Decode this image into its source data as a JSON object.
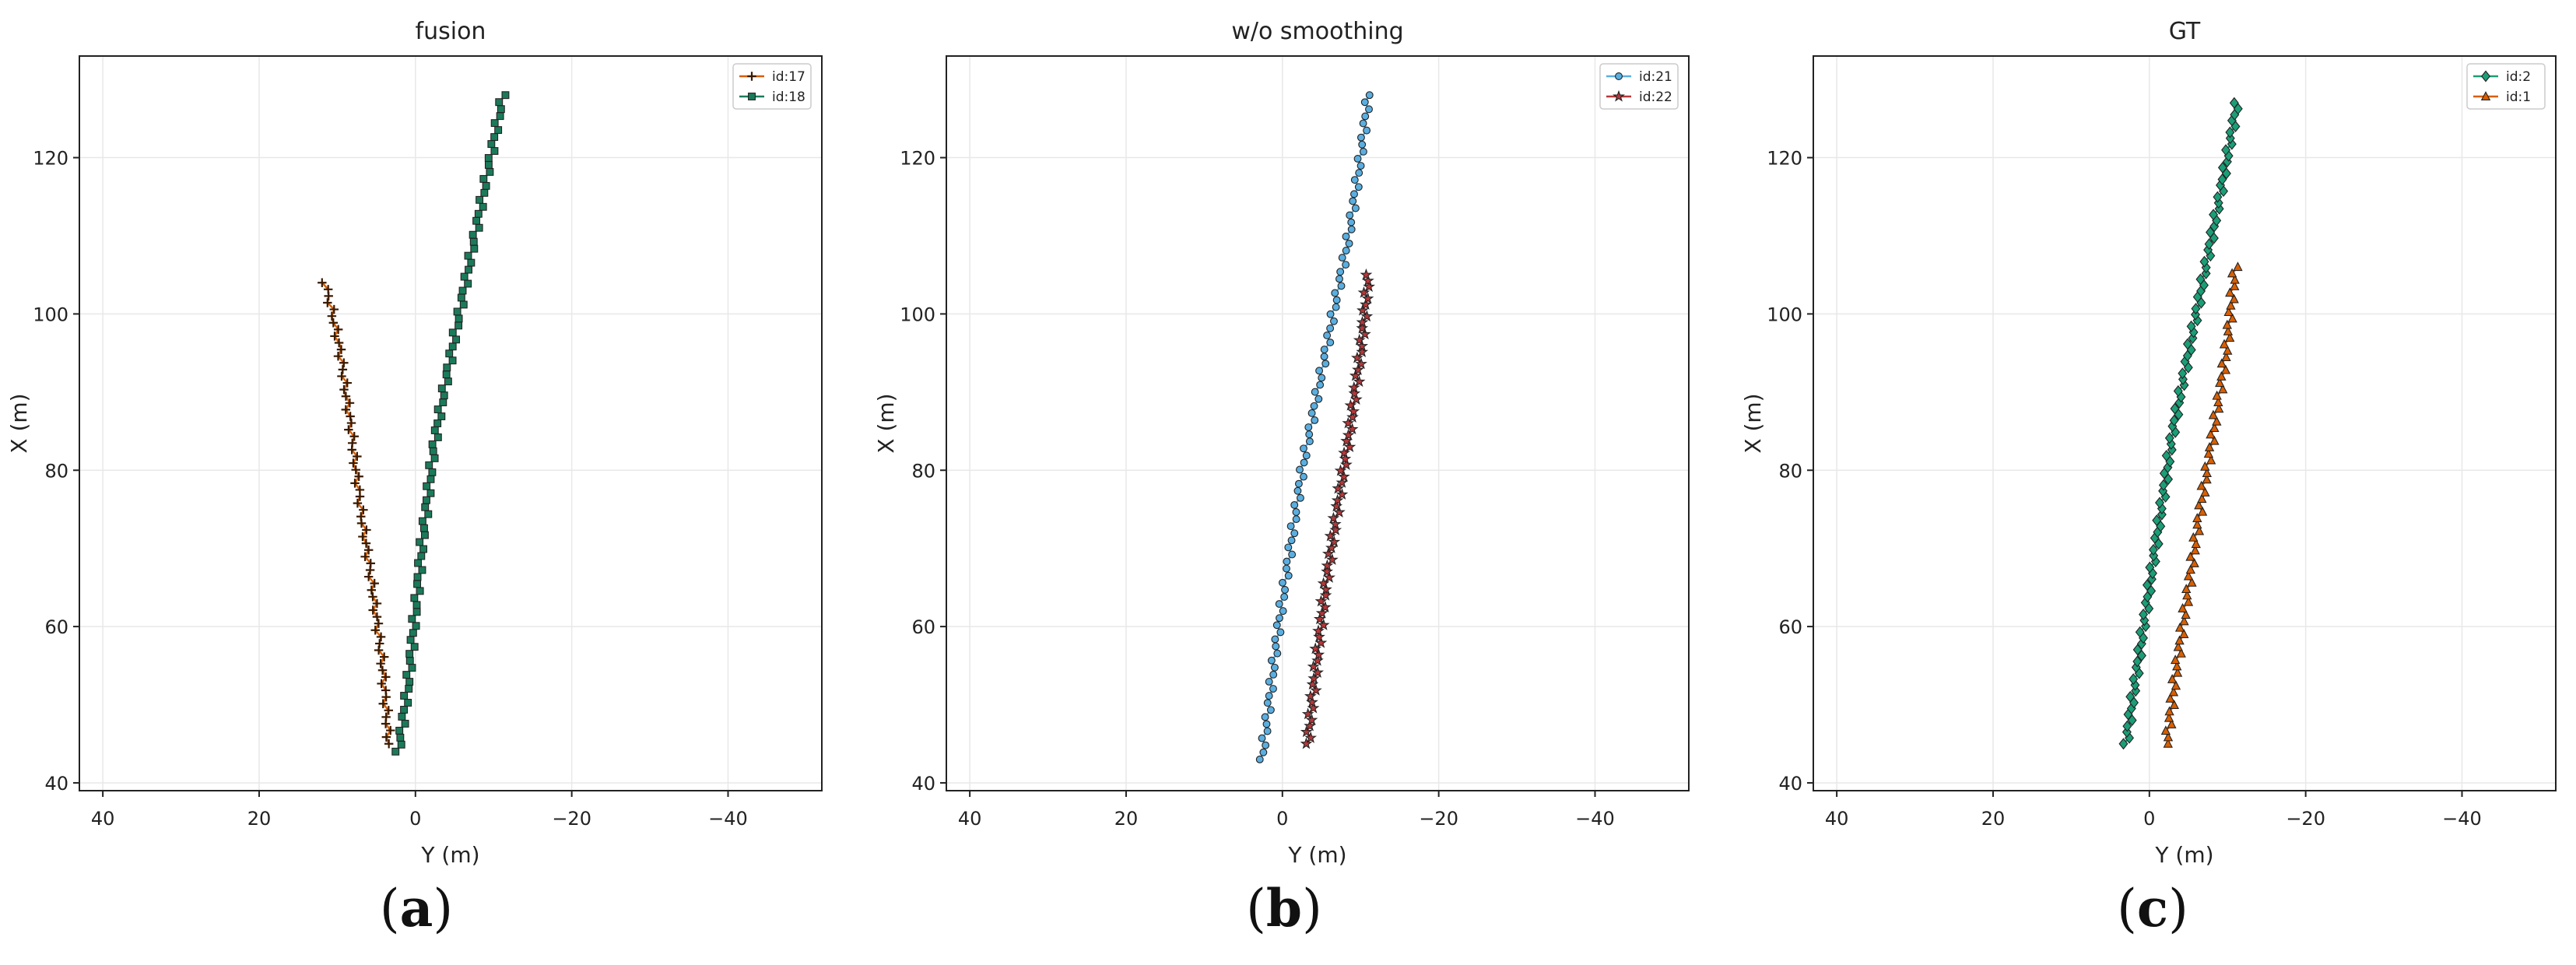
{
  "panels": [
    {
      "caption_open": "(",
      "caption_letter": "a",
      "caption_close": ")"
    },
    {
      "caption_open": "(",
      "caption_letter": "b",
      "caption_close": ")"
    },
    {
      "caption_open": "(",
      "caption_letter": "c",
      "caption_close": ")"
    }
  ],
  "chart_data": [
    {
      "type": "line",
      "title": "fusion",
      "xlabel": "Y (m)",
      "ylabel": "X (m)",
      "xlim": [
        43,
        -52
      ],
      "ylim": [
        39,
        133
      ],
      "x_inverted": true,
      "xticks": [
        40,
        20,
        0,
        -20,
        -40
      ],
      "xtick_labels": [
        "40",
        "20",
        "0",
        "−20",
        "−40"
      ],
      "yticks": [
        40,
        60,
        80,
        100,
        120
      ],
      "ytick_labels": [
        "40",
        "60",
        "80",
        "100",
        "120"
      ],
      "grid": true,
      "legend_position": "top-right",
      "series": [
        {
          "name": "id:17",
          "color": "#d95f02",
          "marker": "plus",
          "samples": 70,
          "x": [
            3.4,
            4.2,
            5.5,
            7.0,
            8.2,
            9.6,
            10.6,
            11.6
          ],
          "y": [
            45,
            55,
            65,
            75,
            85,
            95,
            100,
            104
          ]
        },
        {
          "name": "id:18",
          "color": "#1b7a5a",
          "marker": "square",
          "samples": 95,
          "x": [
            2.2,
            1.0,
            0.0,
            -1.0,
            -2.5,
            -4.0,
            -6.0,
            -8.0,
            -10.0,
            -11.2
          ],
          "y": [
            44,
            52,
            62,
            72,
            84,
            92,
            102,
            112,
            122,
            128
          ]
        }
      ]
    },
    {
      "type": "line",
      "title": "w/o smoothing",
      "xlabel": "Y (m)",
      "ylabel": "X (m)",
      "xlim": [
        43,
        -52
      ],
      "ylim": [
        39,
        133
      ],
      "x_inverted": true,
      "xticks": [
        40,
        20,
        0,
        -20,
        -40
      ],
      "xtick_labels": [
        "40",
        "20",
        "0",
        "−20",
        "−40"
      ],
      "yticks": [
        40,
        60,
        80,
        100,
        120
      ],
      "ytick_labels": [
        "40",
        "60",
        "80",
        "100",
        "120"
      ],
      "grid": true,
      "legend_position": "top-right",
      "series": [
        {
          "name": "id:21",
          "color": "#5aaee0",
          "marker": "circle",
          "samples": 95,
          "x": [
            2.6,
            1.5,
            0.5,
            -1.0,
            -2.5,
            -4.5,
            -6.5,
            -8.5,
            -10.0,
            -11.0
          ],
          "y": [
            43,
            52,
            60,
            70,
            80,
            90,
            100,
            110,
            120,
            128
          ]
        },
        {
          "name": "id:22",
          "color": "#b5383a",
          "marker": "star",
          "samples": 80,
          "x": [
            -3.2,
            -4.3,
            -5.5,
            -7.0,
            -8.6,
            -10.0,
            -11.0
          ],
          "y": [
            45,
            55,
            65,
            75,
            85,
            95,
            105
          ]
        }
      ]
    },
    {
      "type": "line",
      "title": "GT",
      "xlabel": "Y (m)",
      "ylabel": "X (m)",
      "xlim": [
        43,
        -52
      ],
      "ylim": [
        39,
        133
      ],
      "x_inverted": true,
      "xticks": [
        40,
        20,
        0,
        -20,
        -40
      ],
      "xtick_labels": [
        "40",
        "20",
        "0",
        "−20",
        "−40"
      ],
      "yticks": [
        40,
        60,
        80,
        100,
        120
      ],
      "ytick_labels": [
        "40",
        "60",
        "80",
        "100",
        "120"
      ],
      "grid": true,
      "legend_position": "top-right",
      "series": [
        {
          "name": "id:2",
          "color": "#1b9e77",
          "marker": "diamond",
          "samples": 110,
          "x": [
            3.0,
            1.5,
            0.0,
            -1.5,
            -3.0,
            -5.0,
            -7.0,
            -9.0,
            -10.5,
            -11.2
          ],
          "y": [
            45,
            55,
            65,
            75,
            85,
            95,
            105,
            115,
            123,
            127
          ]
        },
        {
          "name": "id:1",
          "color": "#d95f02",
          "marker": "triangle",
          "samples": 75,
          "x": [
            -2.2,
            -3.5,
            -5.0,
            -6.5,
            -8.2,
            -9.8,
            -11.0
          ],
          "y": [
            45,
            55,
            65,
            75,
            85,
            95,
            106
          ]
        }
      ]
    }
  ]
}
